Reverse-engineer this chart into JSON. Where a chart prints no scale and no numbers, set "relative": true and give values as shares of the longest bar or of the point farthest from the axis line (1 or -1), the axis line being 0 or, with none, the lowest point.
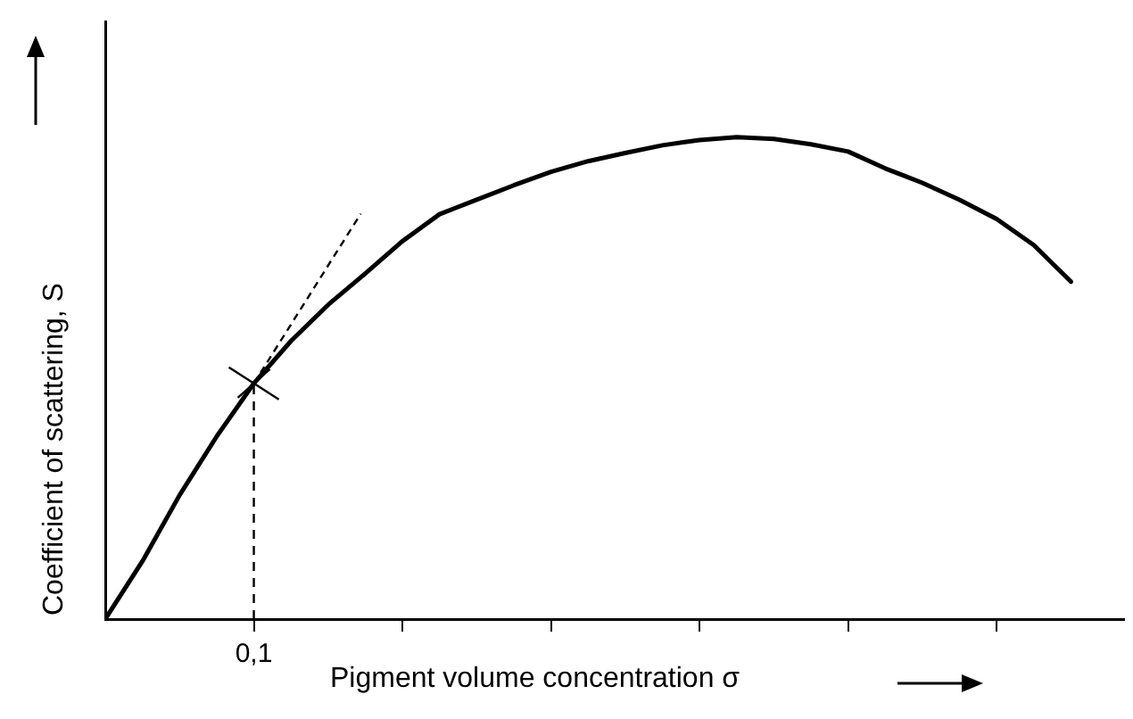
{
  "chart_data": {
    "type": "line",
    "relative": true,
    "xlabel": "Pigment volume concentration σ",
    "ylabel": "Coefficient of scattering, S",
    "annotations": [
      "0,1"
    ],
    "categories": [
      null,
      null,
      null,
      null,
      null,
      null,
      null,
      null,
      null,
      null,
      null,
      null,
      null,
      null,
      null,
      null,
      null,
      null,
      null,
      null,
      null,
      null,
      null,
      null,
      null,
      null,
      null
    ],
    "series": [
      {
        "color": "#000000",
        "values": [
          0,
          0.12,
          0.257,
          0.379,
          0.489,
          0.577,
          0.652,
          0.717,
          0.784,
          0.84,
          0.87,
          0.9,
          0.928,
          0.95,
          0.967,
          0.983,
          0.994,
          1,
          0.996,
          0.985,
          0.97,
          0.935,
          0.905,
          0.87,
          0.83,
          0.776,
          0.7
        ]
      }
    ]
  }
}
